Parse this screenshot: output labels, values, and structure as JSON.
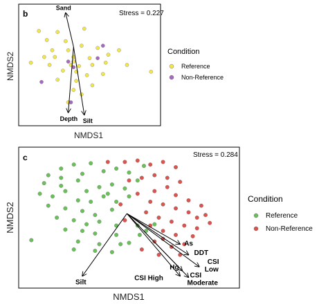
{
  "colors": {
    "reference_b": "#f2e64a",
    "non_reference_b": "#a569bd",
    "reference_c": "#6abf5a",
    "non_reference_c": "#d9534f"
  },
  "chart_data": [
    {
      "type": "scatter",
      "panel": "b",
      "stress_label": "Stress = 0.227",
      "xlabel": "NMDS1",
      "ylabel": "NMDS2",
      "legend": {
        "title": "Condition",
        "placement": "right",
        "entries": [
          "Reference",
          "Non-Reference"
        ]
      },
      "xlim": [
        0,
        100
      ],
      "ylim": [
        0,
        100
      ],
      "origin": [
        38,
        66
      ],
      "series": [
        {
          "name": "Reference",
          "points": [
            [
              12,
              80
            ],
            [
              26,
              79
            ],
            [
              46,
              82
            ],
            [
              18,
              72
            ],
            [
              32,
              71
            ],
            [
              22,
              63
            ],
            [
              34,
              63
            ],
            [
              44,
              67
            ],
            [
              56,
              65
            ],
            [
              16,
              57
            ],
            [
              24,
              57
            ],
            [
              38,
              57
            ],
            [
              50,
              56
            ],
            [
              64,
              59
            ],
            [
              72,
              63
            ],
            [
              6,
              52
            ],
            [
              20,
              50
            ],
            [
              36,
              50
            ],
            [
              42,
              49
            ],
            [
              52,
              50
            ],
            [
              62,
              52
            ],
            [
              30,
              45
            ],
            [
              40,
              44
            ],
            [
              48,
              41
            ],
            [
              60,
              42
            ],
            [
              78,
              50
            ],
            [
              26,
              37
            ],
            [
              40,
              36
            ],
            [
              52,
              32
            ],
            [
              38,
              28
            ],
            [
              44,
              24
            ],
            [
              34,
              17
            ],
            [
              96,
              44
            ],
            [
              38,
              53
            ]
          ]
        },
        {
          "name": "Non-Reference",
          "points": [
            [
              60,
              67
            ],
            [
              34,
              53
            ],
            [
              56,
              56
            ],
            [
              38,
              48
            ],
            [
              14,
              35
            ],
            [
              36,
              17
            ]
          ]
        }
      ],
      "vectors": [
        {
          "label": "Sand",
          "end": [
            32,
            96
          ]
        },
        {
          "label": "Depth",
          "end": [
            34,
            8
          ]
        },
        {
          "label": "Silt",
          "end": [
            46,
            6
          ]
        }
      ]
    },
    {
      "type": "scatter",
      "panel": "c",
      "stress_label": "Stress = 0.284",
      "xlabel": "NMDS1",
      "ylabel": "NMDS2",
      "legend": {
        "title": "Condition",
        "placement": "right",
        "entries": [
          "Reference",
          "Non-Reference"
        ]
      },
      "xlim": [
        0,
        100
      ],
      "ylim": [
        0,
        100
      ],
      "origin": [
        49,
        53
      ],
      "series": [
        {
          "name": "Reference",
          "points": [
            [
              12,
              82
            ],
            [
              18,
              87
            ],
            [
              24,
              90
            ],
            [
              28,
              83
            ],
            [
              32,
              91
            ],
            [
              38,
              85
            ],
            [
              44,
              87
            ],
            [
              50,
              84
            ],
            [
              57,
              89
            ],
            [
              10,
              76
            ],
            [
              18,
              74
            ],
            [
              26,
              78
            ],
            [
              30,
              70
            ],
            [
              36,
              73
            ],
            [
              42,
              75
            ],
            [
              48,
              72
            ],
            [
              54,
              78
            ],
            [
              8,
              68
            ],
            [
              14,
              66
            ],
            [
              20,
              70
            ],
            [
              26,
              63
            ],
            [
              32,
              62
            ],
            [
              38,
              66
            ],
            [
              44,
              62
            ],
            [
              50,
              66
            ],
            [
              12,
              59
            ],
            [
              20,
              57
            ],
            [
              28,
              55
            ],
            [
              34,
              52
            ],
            [
              42,
              56
            ],
            [
              16,
              50
            ],
            [
              24,
              48
            ],
            [
              30,
              45
            ],
            [
              36,
              47
            ],
            [
              44,
              44
            ],
            [
              20,
              41
            ],
            [
              28,
              40
            ],
            [
              34,
              38
            ],
            [
              44,
              37
            ],
            [
              54,
              44
            ],
            [
              58,
              40
            ],
            [
              4,
              33
            ],
            [
              26,
              32
            ],
            [
              36,
              30
            ],
            [
              46,
              30
            ],
            [
              24,
              26
            ],
            [
              34,
              25
            ],
            [
              42,
              24
            ],
            [
              50,
              31
            ],
            [
              55,
              37
            ],
            [
              62,
              45
            ],
            [
              40,
              68
            ],
            [
              18,
              80
            ]
          ]
        },
        {
          "name": "Non-Reference",
          "points": [
            [
              40,
              92
            ],
            [
              48,
              92
            ],
            [
              54,
              93
            ],
            [
              60,
              90
            ],
            [
              66,
              92
            ],
            [
              72,
              88
            ],
            [
              50,
              78
            ],
            [
              56,
              80
            ],
            [
              62,
              82
            ],
            [
              68,
              80
            ],
            [
              74,
              77
            ],
            [
              62,
              70
            ],
            [
              68,
              73
            ],
            [
              72,
              67
            ],
            [
              78,
              63
            ],
            [
              60,
              62
            ],
            [
              66,
              60
            ],
            [
              72,
              57
            ],
            [
              78,
              54
            ],
            [
              84,
              59
            ],
            [
              58,
              54
            ],
            [
              64,
              50
            ],
            [
              70,
              47
            ],
            [
              76,
              44
            ],
            [
              82,
              50
            ],
            [
              86,
              52
            ],
            [
              60,
              44
            ],
            [
              66,
              40
            ],
            [
              72,
              37
            ],
            [
              80,
              36
            ],
            [
              62,
              32
            ],
            [
              70,
              28
            ],
            [
              76,
              30
            ],
            [
              56,
              26
            ],
            [
              64,
              22
            ],
            [
              74,
              22
            ],
            [
              82,
              42
            ],
            [
              46,
              60
            ],
            [
              54,
              68
            ],
            [
              48,
              48
            ],
            [
              88,
              46
            ],
            [
              66,
              34
            ]
          ]
        }
      ],
      "vectors": [
        {
          "label": "Silt",
          "end": [
            28,
            6
          ]
        },
        {
          "label": "As",
          "end": [
            74,
            30
          ]
        },
        {
          "label": "DDT",
          "end": [
            78,
            22
          ]
        },
        {
          "label": "CSI Low",
          "end": [
            83,
            13
          ]
        },
        {
          "label": "Hg",
          "end": [
            75,
            10
          ]
        },
        {
          "label": "CSI Moderate",
          "end": [
            78,
            5
          ]
        },
        {
          "label": "CSI High",
          "end": [
            74,
            6
          ]
        }
      ]
    }
  ]
}
